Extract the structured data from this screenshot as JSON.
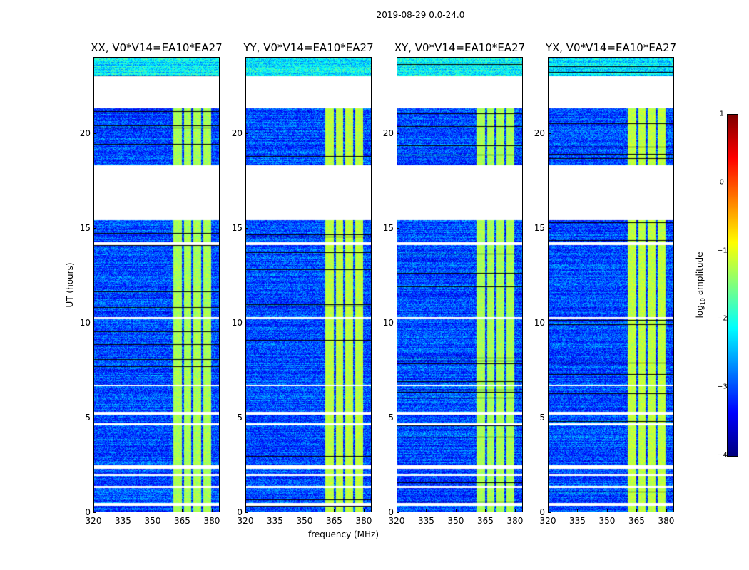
{
  "chart_data": {
    "type": "heatmap",
    "title": "2019-08-29 0.0-24.0",
    "xlabel": "frequency (MHz)",
    "ylabel": "UT (hours)",
    "xlim": [
      320,
      384
    ],
    "ylim": [
      0,
      24
    ],
    "xticks": [
      "320",
      "335",
      "350",
      "365",
      "380"
    ],
    "xtick_values": [
      320,
      335,
      350,
      365,
      380
    ],
    "yticks": [
      "0",
      "5",
      "10",
      "15",
      "20"
    ],
    "ytick_values": [
      0,
      5,
      10,
      15,
      20
    ],
    "panels": [
      {
        "title": "XX, V0*V14=EA10*EA27"
      },
      {
        "title": "YY, V0*V14=EA10*EA27"
      },
      {
        "title": "XY, V0*V14=EA10*EA27"
      },
      {
        "title": "YX, V0*V14=EA10*EA27"
      }
    ],
    "flagged_hours": [
      [
        21.3,
        23.0
      ],
      [
        15.4,
        18.3
      ],
      [
        14.1,
        14.25
      ],
      [
        10.2,
        10.3
      ],
      [
        6.65,
        6.75
      ],
      [
        5.15,
        5.3
      ],
      [
        4.6,
        4.7
      ],
      [
        2.3,
        2.5
      ],
      [
        1.95,
        2.05
      ],
      [
        1.3,
        1.4
      ],
      [
        0.35,
        0.5
      ]
    ],
    "bright_channels_mhz": [
      [
        360.4,
        364.7
      ],
      [
        365.8,
        369.4
      ],
      [
        370.5,
        374.5
      ],
      [
        375.5,
        379.4
      ]
    ],
    "bright_hours": [
      [
        0,
        21.3
      ]
    ],
    "background_log_amplitude": -3.0,
    "bright_log_amplitude": -1.3,
    "colorbar": {
      "label": "log10 amplitude",
      "label_main": "log",
      "label_sub": "10",
      "label_rest": " amplitude",
      "range": [
        -4,
        1
      ],
      "ticks": [
        "1",
        "0",
        "−1",
        "−2",
        "−3",
        "−4"
      ],
      "tick_values": [
        1,
        0,
        -1,
        -2,
        -3,
        -4
      ],
      "colormap": "jet"
    }
  }
}
